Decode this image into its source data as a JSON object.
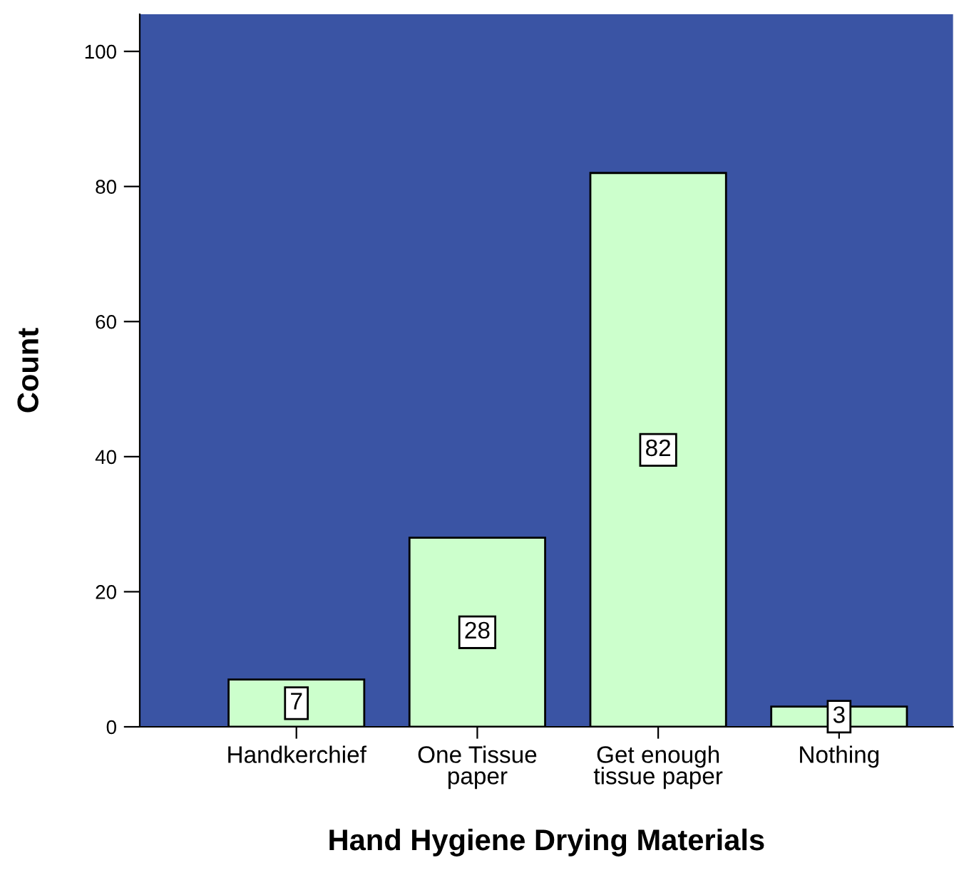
{
  "chart_data": {
    "type": "bar",
    "xlabel": "Hand Hygiene Drying Materials",
    "ylabel": "Count",
    "categories": [
      "Handkerchief",
      "One Tissue\npaper",
      "Get enough\ntissue paper",
      "Nothing"
    ],
    "values": [
      7,
      28,
      82,
      3
    ],
    "color": "#ccffcc",
    "data_labels": true,
    "ylim": [
      0,
      105.5
    ],
    "yticks": [
      0,
      20,
      40,
      60,
      80,
      100
    ],
    "grid": false,
    "legend": false
  }
}
